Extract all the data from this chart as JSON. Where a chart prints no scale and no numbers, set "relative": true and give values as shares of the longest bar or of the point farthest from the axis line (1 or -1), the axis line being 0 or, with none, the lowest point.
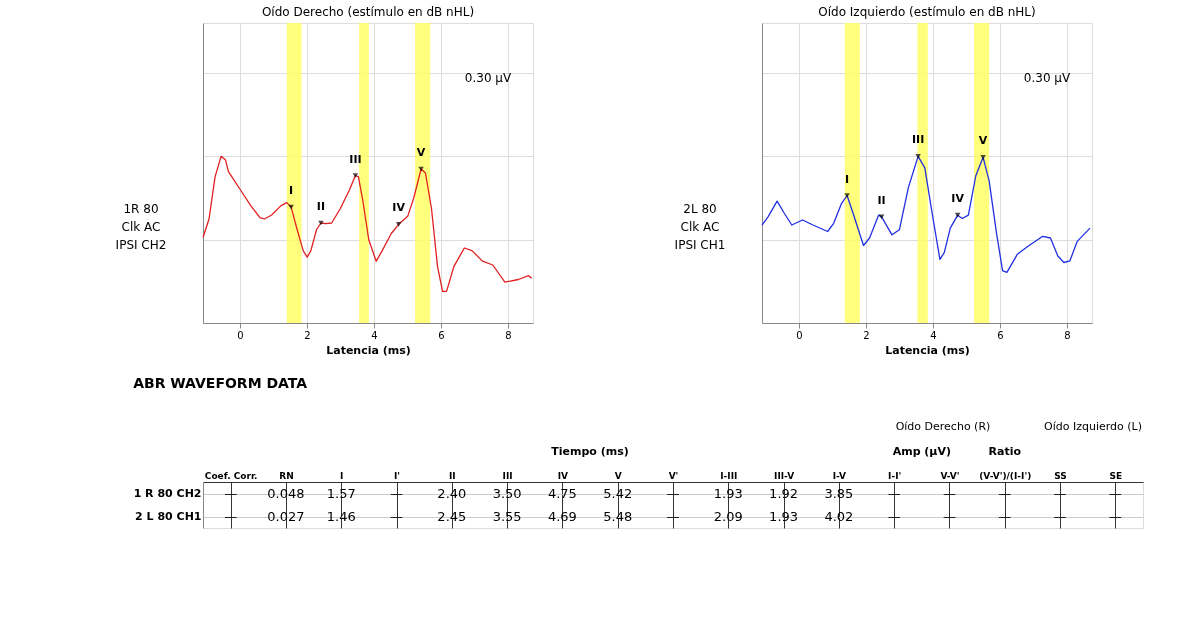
{
  "chart_data": [
    {
      "type": "line",
      "title": "Oído Derecho (estímulo en dB nHL)",
      "xlabel": "Latencia (ms)",
      "relative": true,
      "xlim": [
        -1.1,
        8.75
      ],
      "xticks": [
        0,
        2,
        4,
        6,
        8
      ],
      "grid": true,
      "series": [
        {
          "color": "#e02020",
          "x": [
            -1.1,
            -0.92,
            -0.74,
            -0.56,
            -0.43,
            -0.34,
            0.02,
            0.33,
            0.6,
            0.73,
            0.95,
            1.22,
            1.4,
            1.53,
            1.71,
            1.89,
            2.01,
            2.12,
            2.29,
            2.42,
            2.56,
            2.74,
            3.0,
            3.27,
            3.45,
            3.54,
            3.67,
            3.85,
            4.07,
            4.25,
            4.52,
            4.74,
            5.01,
            5.19,
            5.41,
            5.54,
            5.72,
            5.9,
            6.05,
            6.17,
            6.39,
            6.7,
            6.93,
            7.24,
            7.55,
            7.91,
            8.31,
            8.62,
            8.71
          ],
          "values": [
            0.513,
            0.624,
            0.877,
            1.0,
            0.979,
            0.908,
            0.798,
            0.703,
            0.632,
            0.624,
            0.648,
            0.703,
            0.722,
            0.695,
            0.561,
            0.434,
            0.395,
            0.434,
            0.561,
            0.6,
            0.596,
            0.6,
            0.687,
            0.798,
            0.885,
            0.877,
            0.735,
            0.498,
            0.371,
            0.434,
            0.537,
            0.592,
            0.64,
            0.75,
            0.924,
            0.9,
            0.687,
            0.34,
            0.19,
            0.19,
            0.34,
            0.45,
            0.434,
            0.371,
            0.348,
            0.245,
            0.261,
            0.284,
            0.269
          ]
        }
      ],
      "bands": [
        {
          "axis": "x",
          "from": 1.4,
          "to": 1.84,
          "color": "#ffff66"
        },
        {
          "axis": "x",
          "from": 3.56,
          "to": 3.85,
          "color": "#ffff66"
        },
        {
          "axis": "x",
          "from": 5.23,
          "to": 5.68,
          "color": "#ffff66"
        }
      ],
      "annotations": [
        "1R 80\nClk AC\nIPSI CH2",
        "0.30 µV",
        {
          "text": "I",
          "x": 1.53,
          "y": 0.695
        },
        {
          "text": "II",
          "x": 2.42,
          "y": 0.6
        },
        {
          "text": "III",
          "x": 3.45,
          "y": 0.885
        },
        {
          "text": "IV",
          "x": 4.74,
          "y": 0.592
        },
        {
          "text": "V",
          "x": 5.41,
          "y": 0.924
        }
      ]
    },
    {
      "type": "line",
      "title": "Oído Izquierdo (estímulo en dB nHL)",
      "xlabel": "Latencia (ms)",
      "relative": true,
      "xlim": [
        -1.1,
        8.75
      ],
      "xticks": [
        0,
        2,
        4,
        6,
        8
      ],
      "grid": true,
      "series": [
        {
          "color": "#2030e0",
          "x": [
            -1.1,
            -0.92,
            -0.65,
            -0.43,
            -0.21,
            0.11,
            0.42,
            0.86,
            1.04,
            1.27,
            1.44,
            1.62,
            1.93,
            2.11,
            2.38,
            2.47,
            2.78,
            3.0,
            3.27,
            3.56,
            3.76,
            3.98,
            4.21,
            4.34,
            4.52,
            4.74,
            4.88,
            5.06,
            5.28,
            5.5,
            5.68,
            5.9,
            6.08,
            6.21,
            6.52,
            6.84,
            7.28,
            7.51,
            7.73,
            7.91,
            8.09,
            8.31,
            8.69
          ],
          "values": [
            0.588,
            0.637,
            0.731,
            0.657,
            0.588,
            0.618,
            0.588,
            0.549,
            0.598,
            0.716,
            0.765,
            0.657,
            0.465,
            0.51,
            0.647,
            0.637,
            0.529,
            0.559,
            0.814,
            1.0,
            0.931,
            0.657,
            0.382,
            0.422,
            0.569,
            0.647,
            0.627,
            0.647,
            0.882,
            0.994,
            0.853,
            0.539,
            0.314,
            0.304,
            0.412,
            0.461,
            0.52,
            0.51,
            0.402,
            0.363,
            0.373,
            0.49,
            0.569
          ]
        }
      ],
      "bands": [
        {
          "axis": "x",
          "from": 1.37,
          "to": 1.82,
          "color": "#ffff66"
        },
        {
          "axis": "x",
          "from": 3.54,
          "to": 3.85,
          "color": "#ffff66"
        },
        {
          "axis": "x",
          "from": 5.23,
          "to": 5.68,
          "color": "#ffff66"
        }
      ],
      "annotations": [
        "2L 80\nClk AC\nIPSI CH1",
        "0.30 µV",
        {
          "text": "I",
          "x": 1.44,
          "y": 0.765
        },
        {
          "text": "II",
          "x": 2.47,
          "y": 0.637
        },
        {
          "text": "III",
          "x": 3.56,
          "y": 1.0
        },
        {
          "text": "IV",
          "x": 4.74,
          "y": 0.647
        },
        {
          "text": "V",
          "x": 5.5,
          "y": 0.994
        }
      ]
    },
    {
      "type": "other",
      "title": "ABR WAVEFORM DATA",
      "categories": [
        "Coef. Corr.",
        "RN",
        "I",
        "I'",
        "II",
        "III",
        "IV",
        "V",
        "V'",
        "I-III",
        "III-V",
        "I-V",
        "I-I'",
        "V-V'",
        "(V-V')/(I-I')",
        "SS",
        "SE"
      ],
      "y_categories": [
        "1 R 80 CH2",
        "2 L 80 CH1"
      ],
      "cell_labels": [
        [
          "—",
          "0.048",
          "1.57",
          "—",
          "2.40",
          "3.50",
          "4.75",
          "5.42",
          "—",
          "1.93",
          "1.92",
          "3.85",
          "—",
          "—",
          "—",
          "—",
          "—"
        ],
        [
          "—",
          "0.027",
          "1.46",
          "—",
          "2.45",
          "3.55",
          "4.69",
          "5.48",
          "—",
          "2.09",
          "1.93",
          "4.02",
          "—",
          "—",
          "—",
          "—",
          "—"
        ]
      ],
      "annotations": [
        "Tiempo (ms)",
        "Amp (µV)",
        "Ratio",
        "Oído Derecho (R)",
        "Oído Izquierdo (L)"
      ]
    }
  ]
}
